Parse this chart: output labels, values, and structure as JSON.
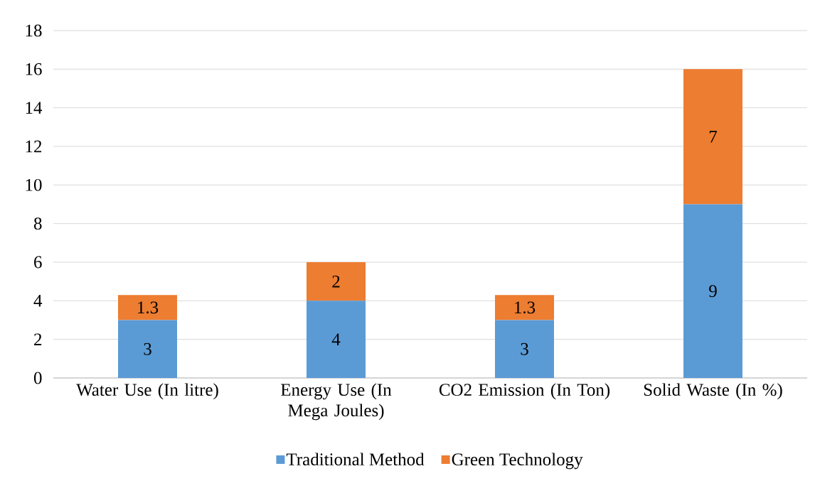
{
  "chart_data": {
    "type": "bar",
    "stacked": true,
    "categories": [
      "Water Use (In litre)",
      "Energy Use (In Mega Joules)",
      "CO2 Emission (In Ton)",
      "Solid Waste (In %)"
    ],
    "series": [
      {
        "name": "Traditional Method",
        "color": "#5b9bd5",
        "values": [
          3,
          4,
          3,
          9
        ]
      },
      {
        "name": "Green Technology",
        "color": "#ed7d31",
        "values": [
          1.3,
          2,
          1.3,
          7
        ]
      }
    ],
    "ylim": [
      0,
      18
    ],
    "yticks": [
      0,
      2,
      4,
      6,
      8,
      10,
      12,
      14,
      16,
      18
    ],
    "grid": "y",
    "legend": "bottom",
    "data_labels": true
  }
}
